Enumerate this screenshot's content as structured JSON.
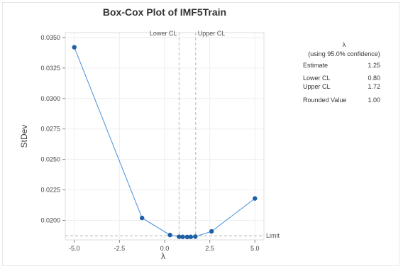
{
  "chart_data": {
    "type": "line",
    "title": "Box-Cox Plot of IMF5Train",
    "xlabel": "λ",
    "ylabel": "StDev",
    "xlim": [
      -5.5,
      5.5
    ],
    "ylim": [
      0.0184,
      0.0354
    ],
    "x_ticks": [
      "-5.0",
      "-2.5",
      "0.0",
      "2.5",
      "5.0"
    ],
    "y_ticks": [
      "0.0200",
      "0.0225",
      "0.0250",
      "0.0275",
      "0.0300",
      "0.0325",
      "0.0350"
    ],
    "series": [
      {
        "x": [
          -5.0,
          -1.25,
          0.3,
          0.8,
          1.0,
          1.25,
          1.45,
          1.7,
          2.6,
          5.0
        ],
        "y": [
          0.0342,
          0.0202,
          0.0188,
          0.01866,
          0.01865,
          0.01864,
          0.01865,
          0.01867,
          0.0191,
          0.0218
        ]
      }
    ],
    "limit_y": 0.01874,
    "limit_label": "Limit",
    "lower_cl": 0.8,
    "upper_cl": 1.72,
    "lower_cl_label": "Lower CL",
    "upper_cl_label": "Upper CL",
    "grid": true,
    "line_color": "#4a90d9",
    "marker_color": "#1f5fa5"
  },
  "legend": {
    "symbol": "λ",
    "subtitle": "(using 95.0% confidence)",
    "rows": [
      {
        "label": "Estimate",
        "value": "1.25"
      },
      {
        "label": "Lower CL",
        "value": "0.80"
      },
      {
        "label": "Upper CL",
        "value": "1.72"
      },
      {
        "label": "Rounded Value",
        "value": "1.00"
      }
    ]
  }
}
